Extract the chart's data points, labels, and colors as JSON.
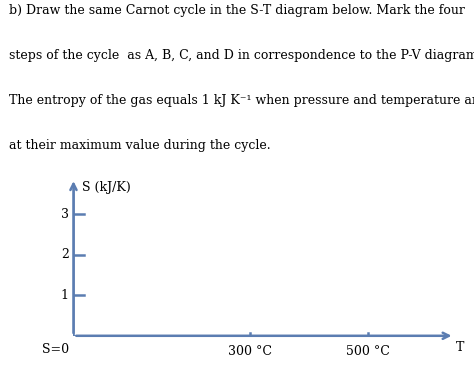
{
  "text_lines": [
    "b) Draw the same Carnot cycle in the S-T diagram below. Mark the four",
    "steps of the cycle  as A, B, C, and D in correspondence to the P-V diagram.",
    "The entropy of the gas equals 1 kJ K⁻¹ when pressure and temperature are",
    "at their maximum value during the cycle."
  ],
  "axis_color": "#5b7db1",
  "background_color": "#ffffff",
  "ylabel": "S (kJ/K)",
  "xlabel": "T",
  "origin_label": "S=0",
  "yticks": [
    1,
    2,
    3
  ],
  "xtick_labels": [
    "300 °C",
    "500 °C"
  ],
  "xtick_positions": [
    300,
    500
  ],
  "xlim": [
    0,
    660
  ],
  "ylim": [
    0,
    4.0
  ],
  "text_color": "#000000",
  "font_size_text": 9.0,
  "font_size_axis": 9.0,
  "lw": 1.8
}
